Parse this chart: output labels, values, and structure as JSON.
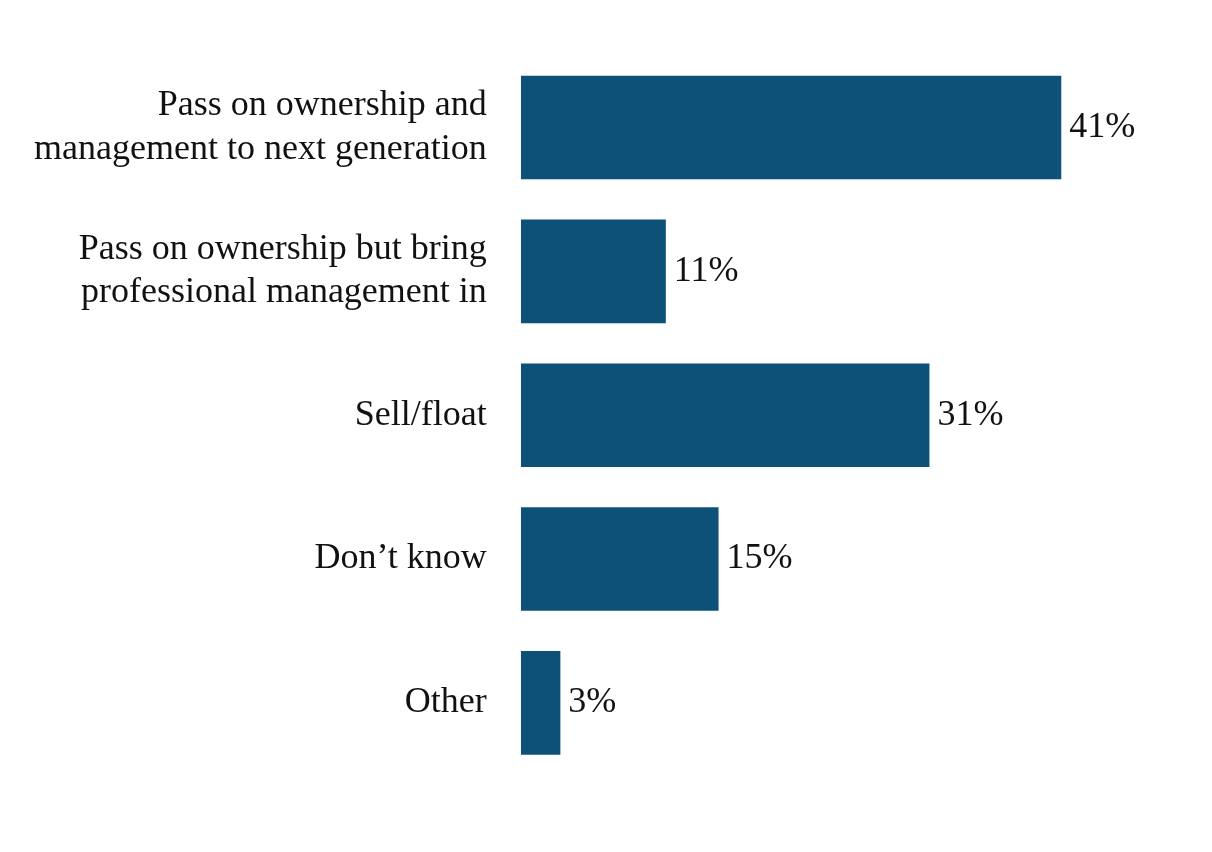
{
  "chart_data": {
    "type": "bar",
    "orientation": "horizontal",
    "categories": [
      "Pass on ownership and management to next generation",
      "Pass on ownership but bring professional management in",
      "Sell/float",
      "Don’t know",
      "Other"
    ],
    "values": [
      41,
      11,
      31,
      15,
      3
    ],
    "value_labels": [
      "41%",
      "11%",
      "31%",
      "15%",
      "3%"
    ],
    "color": "#0d5078",
    "grid": false,
    "legend": false
  }
}
